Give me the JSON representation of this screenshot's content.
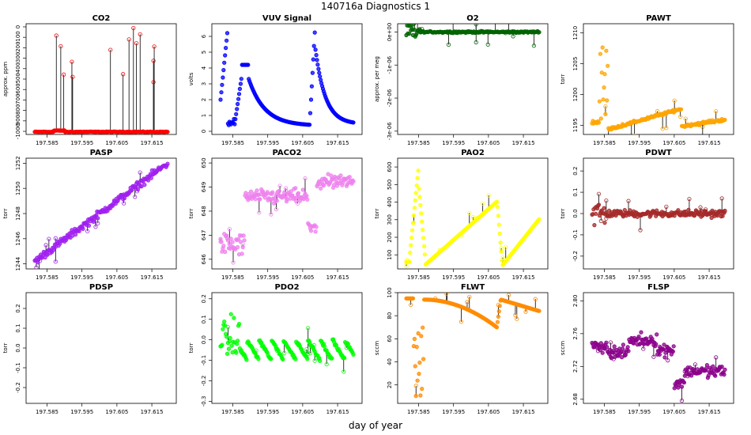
{
  "figure": {
    "title": "140716a   Diagnostics 1",
    "xlabel": "day of year"
  },
  "x_tick_labels": [
    "197.585",
    "197.595",
    "197.605",
    "197.615"
  ],
  "chart_data": [
    {
      "type": "scatter",
      "title": "CO2",
      "ylabel": "approx. ppm",
      "color": "#ff0000",
      "xlim": [
        197.579,
        197.622
      ],
      "ylim": [
        -1030,
        30
      ],
      "yticks": [
        0,
        -100,
        -200,
        -300,
        -400,
        -500,
        -600,
        -700,
        -800,
        -900,
        -1000
      ],
      "ytick_labels": [
        "0",
        "-100",
        "-200",
        "-300",
        "-400",
        "-500",
        "-600",
        "-700",
        "-800",
        "-900",
        "-1000"
      ],
      "model": "co2",
      "drops": true
    },
    {
      "type": "scatter",
      "title": "VUV Signal",
      "ylabel": "volts",
      "color": "#0000ff",
      "xlim": [
        197.579,
        197.622
      ],
      "ylim": [
        -0.2,
        6.8
      ],
      "yticks": [
        0,
        1,
        2,
        3,
        4,
        5,
        6
      ],
      "ytick_labels": [
        "0",
        "1",
        "2",
        "3",
        "4",
        "5",
        "6"
      ],
      "model": "vuv",
      "drops": false
    },
    {
      "type": "scatter",
      "title": "O2",
      "ylabel": "approx. per meg",
      "color": "#006400",
      "xlim": [
        197.579,
        197.622
      ],
      "ylim": [
        -3.1e-06,
        2.5e-07
      ],
      "yticks": [
        0,
        -1e-06,
        -2e-06,
        -3e-06
      ],
      "ytick_labels": [
        "0e+00",
        "-1e-06",
        "-2e-06",
        "-3e-06"
      ],
      "model": "o2",
      "drops": true
    },
    {
      "type": "scatter",
      "title": "PAWT",
      "ylabel": "torr",
      "color": "#ffa500",
      "xlim": [
        197.579,
        197.622
      ],
      "ylim": [
        1193.5,
        1211.5
      ],
      "yticks": [
        1195,
        1200,
        1205,
        1210
      ],
      "ytick_labels": [
        "1195",
        "1200",
        "1205",
        "1210"
      ],
      "model": "pawt",
      "drops": true
    },
    {
      "type": "scatter",
      "title": "PASP",
      "ylabel": "torr",
      "color": "#a020f0",
      "xlim": [
        197.579,
        197.622
      ],
      "ylim": [
        1243.6,
        1252.4
      ],
      "yticks": [
        1244,
        1246,
        1248,
        1250,
        1252
      ],
      "ytick_labels": [
        "1244",
        "1246",
        "1248",
        "1250",
        "1252"
      ],
      "model": "pasp",
      "drops": true
    },
    {
      "type": "scatter",
      "title": "PACO2",
      "ylabel": "torr",
      "color": "#ee82ee",
      "xlim": [
        197.579,
        197.622
      ],
      "ylim": [
        645.6,
        650.2
      ],
      "yticks": [
        646,
        647,
        648,
        649,
        650
      ],
      "ytick_labels": [
        "646",
        "647",
        "648",
        "649",
        "650"
      ],
      "model": "paco2",
      "drops": true
    },
    {
      "type": "scatter",
      "title": "PAO2",
      "ylabel": "torr",
      "color": "#ffff00",
      "xlim": [
        197.579,
        197.622
      ],
      "ylim": [
        20,
        650
      ],
      "yticks": [
        100,
        200,
        300,
        400,
        500,
        600
      ],
      "ytick_labels": [
        "100",
        "200",
        "300",
        "400",
        "500",
        "600"
      ],
      "model": "pao2",
      "drops": true
    },
    {
      "type": "scatter",
      "title": "PDWT",
      "ylabel": "torr",
      "color": "#a52a2a",
      "xlim": [
        197.579,
        197.622
      ],
      "ylim": [
        -0.26,
        0.26
      ],
      "yticks": [
        -0.2,
        -0.1,
        0.0,
        0.1,
        0.2
      ],
      "ytick_labels": [
        "-0.2",
        "-0.1",
        "0.0",
        "0.1",
        "0.2"
      ],
      "model": "pdwt",
      "drops": true
    },
    {
      "type": "scatter",
      "title": "PDSP",
      "ylabel": "torr",
      "color": "#000000",
      "xlim": [
        197.579,
        197.622
      ],
      "ylim": [
        -0.28,
        0.28
      ],
      "yticks": [
        -0.2,
        -0.1,
        0.0,
        0.1,
        0.2
      ],
      "ytick_labels": [
        "-0.2",
        "-0.1",
        "0.0",
        "0.1",
        "0.2"
      ],
      "model": "empty",
      "drops": false
    },
    {
      "type": "scatter",
      "title": "PDO2",
      "ylabel": "torr",
      "color": "#00ff00",
      "xlim": [
        197.579,
        197.622
      ],
      "ylim": [
        -0.31,
        0.23
      ],
      "yticks": [
        -0.3,
        -0.2,
        -0.1,
        0.0,
        0.1,
        0.2
      ],
      "ytick_labels": [
        "-0.3",
        "-0.2",
        "-0.1",
        "0.0",
        "0.1",
        "0.2"
      ],
      "model": "pdo2",
      "drops": true
    },
    {
      "type": "scatter",
      "title": "FLWT",
      "ylabel": "sccm",
      "color": "#ff8c00",
      "xlim": [
        197.579,
        197.622
      ],
      "ylim": [
        4,
        100
      ],
      "yticks": [
        20,
        40,
        60,
        80,
        100
      ],
      "ytick_labels": [
        "20",
        "40",
        "60",
        "80",
        "100"
      ],
      "model": "flwt",
      "drops": true
    },
    {
      "type": "scatter",
      "title": "FLSP",
      "ylabel": "sccm",
      "color": "#8b008b",
      "xlim": [
        197.579,
        197.622
      ],
      "ylim": [
        2.675,
        2.81
      ],
      "yticks": [
        2.68,
        2.72,
        2.76,
        2.8
      ],
      "ytick_labels": [
        "2.68",
        "2.72",
        "2.76",
        "2.80"
      ],
      "model": "flsp",
      "drops": true
    }
  ],
  "x_ticks": [
    197.585,
    197.595,
    197.605,
    197.615
  ]
}
